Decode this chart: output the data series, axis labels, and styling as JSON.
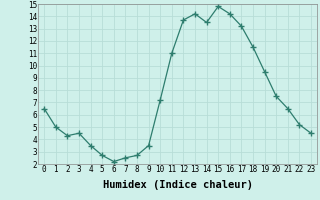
{
  "x": [
    0,
    1,
    2,
    3,
    4,
    5,
    6,
    7,
    8,
    9,
    10,
    11,
    12,
    13,
    14,
    15,
    16,
    17,
    18,
    19,
    20,
    21,
    22,
    23
  ],
  "y": [
    6.5,
    5.0,
    4.3,
    4.5,
    3.5,
    2.7,
    2.2,
    2.5,
    2.7,
    3.5,
    7.2,
    11.0,
    13.7,
    14.2,
    13.5,
    14.8,
    14.2,
    13.2,
    11.5,
    9.5,
    7.5,
    6.5,
    5.2,
    4.5
  ],
  "line_color": "#2e7d6e",
  "marker": "+",
  "marker_size": 4.0,
  "bg_color": "#cff0ea",
  "grid_color": "#b8ddd7",
  "xlabel": "Humidex (Indice chaleur)",
  "ylim": [
    2,
    15
  ],
  "xlim": [
    -0.5,
    23.5
  ],
  "yticks": [
    2,
    3,
    4,
    5,
    6,
    7,
    8,
    9,
    10,
    11,
    12,
    13,
    14,
    15
  ],
  "xticks": [
    0,
    1,
    2,
    3,
    4,
    5,
    6,
    7,
    8,
    9,
    10,
    11,
    12,
    13,
    14,
    15,
    16,
    17,
    18,
    19,
    20,
    21,
    22,
    23
  ],
  "tick_label_size": 5.5,
  "xlabel_size": 7.5
}
